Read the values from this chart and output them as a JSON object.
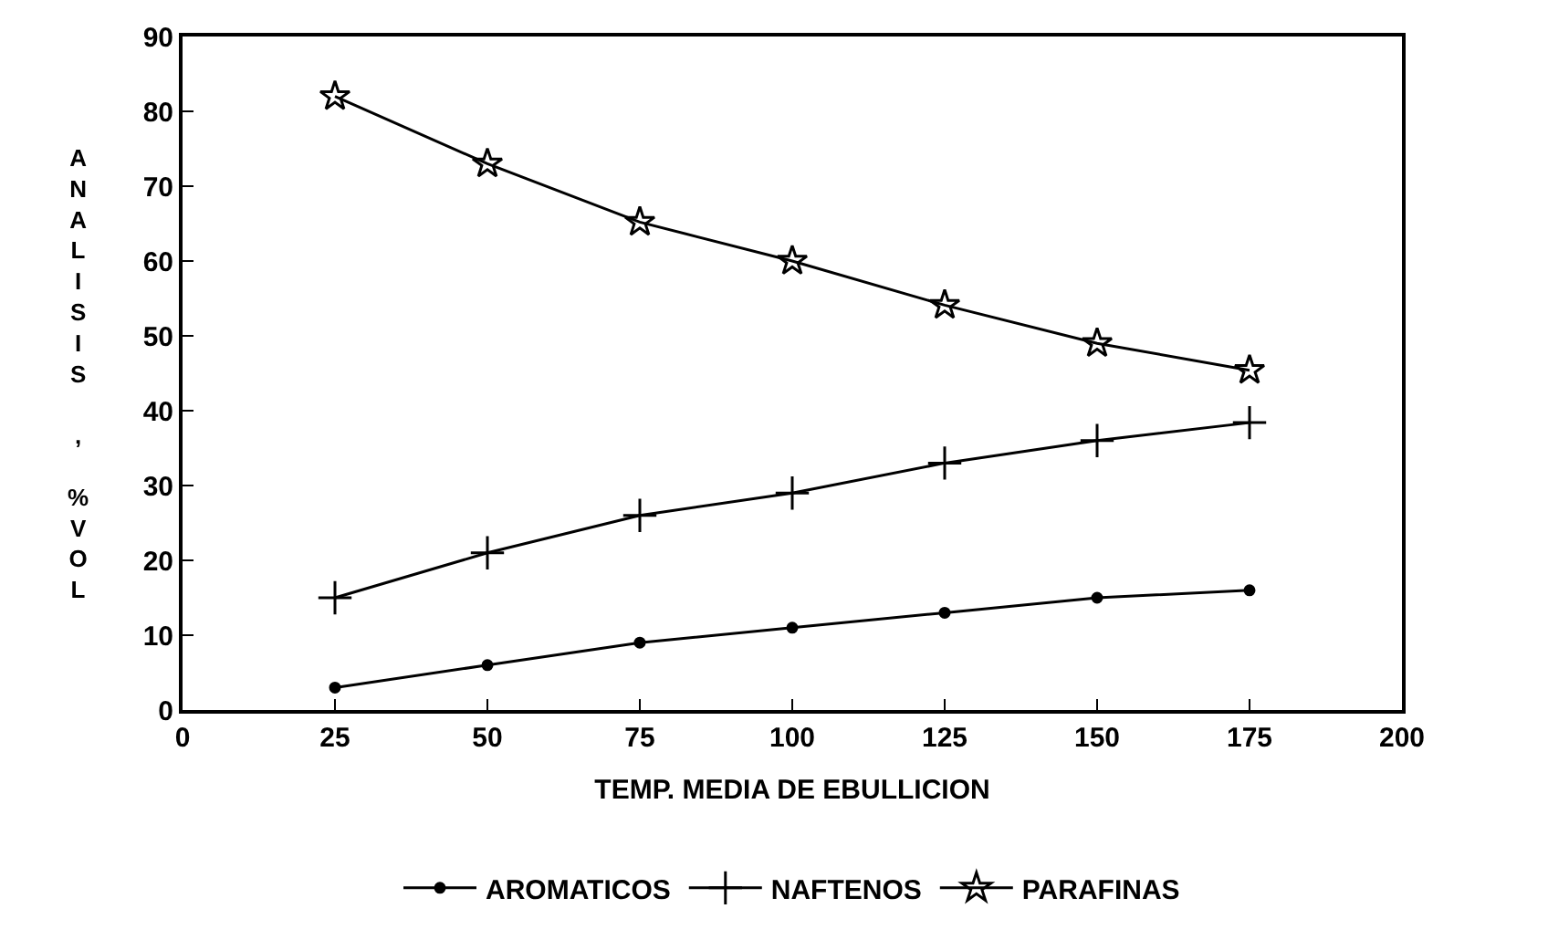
{
  "chart_data": {
    "type": "line",
    "xlabel": "TEMP. MEDIA DE EBULLICION",
    "ylabel": "ANALISIS , %VOL",
    "x": [
      25,
      50,
      75,
      100,
      125,
      150,
      175
    ],
    "series": [
      {
        "name": "AROMATICOS",
        "color": "#000000",
        "marker": "circle",
        "values": [
          3,
          6,
          9,
          11,
          13,
          15,
          16
        ]
      },
      {
        "name": "NAFTENOS",
        "color": "#000000",
        "marker": "cross",
        "values": [
          15,
          21,
          26,
          29,
          33,
          36,
          38.4
        ]
      },
      {
        "name": "PARAFINAS",
        "color": "#000000",
        "marker": "star",
        "values": [
          82,
          73,
          65.2,
          60,
          54.1,
          49,
          45.4
        ]
      }
    ],
    "xlim": [
      0,
      200
    ],
    "xticks": [
      0,
      25,
      50,
      75,
      100,
      125,
      150,
      175,
      200
    ],
    "ylim": [
      0,
      90
    ],
    "yticks": [
      0,
      10,
      20,
      30,
      40,
      50,
      60,
      70,
      80,
      90
    ],
    "legend": "bottom",
    "line_style": "solid"
  }
}
